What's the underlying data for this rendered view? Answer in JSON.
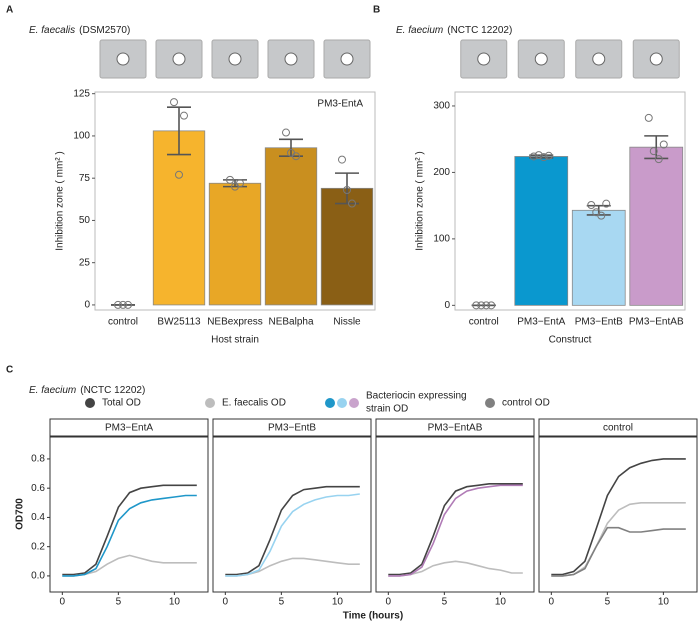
{
  "chart_data": [
    {
      "type": "bar",
      "panel": "A",
      "title_species": "E. faecalis",
      "title_strain": "(DSM2570)",
      "annotation": "PM3-EntA",
      "ylabel": "Inhibition zone ( mm² )",
      "xlabel": "Host strain",
      "categories": [
        "control",
        "BW25113",
        "NEBexpress",
        "NEBalpha",
        "Nissle"
      ],
      "values": [
        0,
        103,
        72,
        93,
        69
      ],
      "errors": [
        0,
        14,
        2,
        5,
        9
      ],
      "points": [
        [
          0,
          0,
          0
        ],
        [
          120,
          77,
          112
        ],
        [
          74,
          70,
          72
        ],
        [
          102,
          90,
          88
        ],
        [
          86,
          68,
          60
        ]
      ],
      "colors": [
        "#cccccc",
        "#f6b42d",
        "#e8a726",
        "#c98f1f",
        "#8a5f15"
      ],
      "ylim": [
        -3,
        126
      ],
      "yticks": [
        0,
        25,
        50,
        75,
        100,
        125
      ]
    },
    {
      "type": "bar",
      "panel": "B",
      "title_species": "E. faecium",
      "title_strain": "(NCTC 12202)",
      "ylabel": "Inhibition zone ( mm² )",
      "xlabel": "Construct",
      "categories": [
        "control",
        "PM3−EntA",
        "PM3−EntB",
        "PM3−EntAB"
      ],
      "values": [
        0,
        224,
        143,
        238
      ],
      "errors": [
        0,
        2,
        7,
        17
      ],
      "points": [
        [
          0,
          0,
          0,
          0
        ],
        [
          224,
          226,
          223,
          225
        ],
        [
          151,
          140,
          135,
          153
        ],
        [
          282,
          232,
          220,
          242
        ]
      ],
      "colors": [
        "#cccccc",
        "#0a98cf",
        "#a8d8f2",
        "#c99bca"
      ],
      "ylim": [
        -7,
        321
      ],
      "yticks": [
        0,
        100,
        200,
        300
      ]
    },
    {
      "type": "line",
      "panel": "C",
      "title_species": "E. faecium",
      "title_strain": "(NCTC 12202)",
      "legend": [
        {
          "name": "Total OD",
          "colors": [
            "#444444"
          ]
        },
        {
          "name": "E. faecalis OD",
          "colors": [
            "#bdbdbd"
          ]
        },
        {
          "name": [
            "Bacteriocin expressing",
            "strain OD"
          ],
          "colors": [
            "#1f97c9",
            "#98d3f0",
            "#c9a3cc"
          ]
        },
        {
          "name": "control OD",
          "colors": [
            "#808080"
          ]
        }
      ],
      "ylabel": "OD700",
      "xlabel": "Time (hours)",
      "facet_title": "PM3−EntA",
      "x": [
        0,
        1,
        2,
        3,
        4,
        5,
        6,
        7,
        8,
        9,
        10,
        11,
        12
      ],
      "series": [
        {
          "color": "#444444",
          "values": [
            0.01,
            0.01,
            0.02,
            0.08,
            0.27,
            0.47,
            0.57,
            0.6,
            0.61,
            0.62,
            0.62,
            0.62,
            0.62
          ]
        },
        {
          "color": "#bdbdbd",
          "values": [
            0,
            0,
            0.01,
            0.03,
            0.08,
            0.12,
            0.14,
            0.12,
            0.1,
            0.09,
            0.09,
            0.09,
            0.09
          ]
        },
        {
          "color": "#1f97c9",
          "values": [
            0,
            0,
            0.01,
            0.05,
            0.2,
            0.38,
            0.46,
            0.5,
            0.52,
            0.53,
            0.54,
            0.55,
            0.55
          ]
        }
      ],
      "xlim": [
        -1.1,
        13
      ],
      "xticks": [
        0,
        5,
        10
      ],
      "ylim": [
        -0.11,
        0.95
      ],
      "yticks": [
        {
          "value": 0,
          "label": "0.0"
        },
        0.2,
        0.4,
        0.6,
        0.8
      ]
    },
    {
      "type": "line",
      "facet_title": "PM3−EntB",
      "x": [
        0,
        1,
        2,
        3,
        4,
        5,
        6,
        7,
        8,
        9,
        10,
        11,
        12
      ],
      "series": [
        {
          "color": "#444444",
          "values": [
            0.01,
            0.01,
            0.02,
            0.07,
            0.25,
            0.45,
            0.55,
            0.59,
            0.6,
            0.61,
            0.61,
            0.61,
            0.61
          ]
        },
        {
          "color": "#bdbdbd",
          "values": [
            0,
            0,
            0.01,
            0.03,
            0.07,
            0.1,
            0.12,
            0.12,
            0.11,
            0.1,
            0.09,
            0.08,
            0.08
          ]
        },
        {
          "color": "#98d3f0",
          "values": [
            0,
            0,
            0.01,
            0.04,
            0.17,
            0.34,
            0.44,
            0.49,
            0.52,
            0.54,
            0.55,
            0.55,
            0.56
          ]
        }
      ],
      "xlim": [
        -1.1,
        13
      ],
      "xticks": [
        0,
        5,
        10
      ],
      "ylim": [
        -0.11,
        0.95
      ]
    },
    {
      "type": "line",
      "facet_title": "PM3−EntAB",
      "x": [
        0,
        1,
        2,
        3,
        4,
        5,
        6,
        7,
        8,
        9,
        10,
        11,
        12
      ],
      "series": [
        {
          "color": "#444444",
          "values": [
            0.01,
            0.01,
            0.02,
            0.08,
            0.27,
            0.48,
            0.58,
            0.61,
            0.62,
            0.63,
            0.63,
            0.63,
            0.63
          ]
        },
        {
          "color": "#bdbdbd",
          "values": [
            0,
            0,
            0.01,
            0.03,
            0.07,
            0.09,
            0.1,
            0.09,
            0.07,
            0.05,
            0.04,
            0.02,
            0.02
          ]
        },
        {
          "color": "#b07bb6",
          "values": [
            0,
            0,
            0.01,
            0.06,
            0.22,
            0.42,
            0.53,
            0.58,
            0.6,
            0.61,
            0.62,
            0.62,
            0.62
          ]
        }
      ],
      "xlim": [
        -1.1,
        13
      ],
      "xticks": [
        0,
        5,
        10
      ],
      "ylim": [
        -0.11,
        0.95
      ]
    },
    {
      "type": "line",
      "facet_title": "control",
      "x": [
        0,
        1,
        2,
        3,
        4,
        5,
        6,
        7,
        8,
        9,
        10,
        11,
        12
      ],
      "series": [
        {
          "color": "#444444",
          "values": [
            0.01,
            0.01,
            0.03,
            0.1,
            0.32,
            0.55,
            0.68,
            0.74,
            0.77,
            0.79,
            0.8,
            0.8,
            0.8
          ]
        },
        {
          "color": "#bdbdbd",
          "values": [
            0,
            0,
            0.01,
            0.06,
            0.2,
            0.36,
            0.45,
            0.49,
            0.5,
            0.5,
            0.5,
            0.5,
            0.5
          ]
        },
        {
          "color": "#808080",
          "values": [
            0,
            0,
            0.01,
            0.05,
            0.2,
            0.33,
            0.33,
            0.3,
            0.3,
            0.31,
            0.32,
            0.32,
            0.32
          ]
        }
      ],
      "xlim": [
        -1.1,
        13
      ],
      "xticks": [
        0,
        5,
        10
      ],
      "ylim": [
        -0.11,
        0.95
      ]
    }
  ]
}
